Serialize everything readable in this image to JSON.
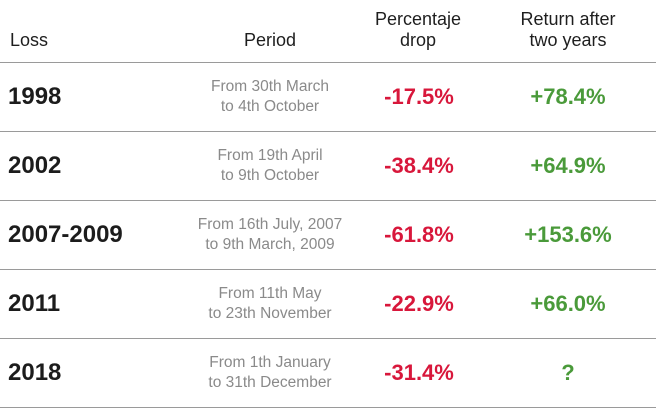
{
  "headers": {
    "loss": "Loss",
    "period": "Period",
    "drop_line1": "Percentaje",
    "drop_line2": "drop",
    "return_line1": "Return after",
    "return_line2": "two years"
  },
  "rows": [
    {
      "loss": "1998",
      "period_line1": "From 30th March",
      "period_line2": "to 4th October",
      "drop": "-17.5%",
      "return": "+78.4%"
    },
    {
      "loss": "2002",
      "period_line1": "From 19th April",
      "period_line2": "to 9th October",
      "drop": "-38.4%",
      "return": "+64.9%"
    },
    {
      "loss": "2007-2009",
      "period_line1": "From 16th July, 2007",
      "period_line2": "to 9th March, 2009",
      "drop": "-61.8%",
      "return": "+153.6%"
    },
    {
      "loss": "2011",
      "period_line1": "From 11th May",
      "period_line2": "to 23th November",
      "drop": "-22.9%",
      "return": "+66.0%"
    },
    {
      "loss": "2018",
      "period_line1": "From 1th January",
      "period_line2": "to 31th December",
      "drop": "-31.4%",
      "return": "?"
    }
  ],
  "colors": {
    "negative": "#d8173b",
    "positive": "#4a9a3a",
    "period_text": "#8a8a8a"
  }
}
